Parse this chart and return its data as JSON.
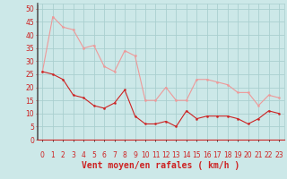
{
  "hours": [
    0,
    1,
    2,
    3,
    4,
    5,
    6,
    7,
    8,
    9,
    10,
    11,
    12,
    13,
    14,
    15,
    16,
    17,
    18,
    19,
    20,
    21,
    22,
    23
  ],
  "wind_avg": [
    26,
    25,
    23,
    17,
    16,
    13,
    12,
    14,
    19,
    9,
    6,
    6,
    7,
    5,
    11,
    8,
    9,
    9,
    9,
    8,
    6,
    8,
    11,
    10
  ],
  "wind_gust": [
    26,
    47,
    43,
    42,
    35,
    36,
    28,
    26,
    34,
    32,
    15,
    15,
    20,
    15,
    15,
    23,
    23,
    22,
    21,
    18,
    18,
    13,
    17,
    16
  ],
  "bg_color": "#cce8e8",
  "grid_color": "#aacfcf",
  "line_color_avg": "#cc2222",
  "line_color_gust": "#ee9999",
  "marker_color_avg": "#cc2222",
  "marker_color_gust": "#ee9999",
  "xlabel": "Vent moyen/en rafales ( km/h )",
  "xlabel_color": "#cc2222",
  "xlabel_fontsize": 7,
  "yticks": [
    0,
    5,
    10,
    15,
    20,
    25,
    30,
    35,
    40,
    45,
    50
  ],
  "ylim": [
    0,
    52
  ],
  "xlim": [
    -0.5,
    23.5
  ],
  "tick_color": "#cc2222",
  "tick_fontsize": 5.5,
  "axis_color": "#555555",
  "left_spine_color": "#555555",
  "bottom_spine_color": "#cc2222"
}
